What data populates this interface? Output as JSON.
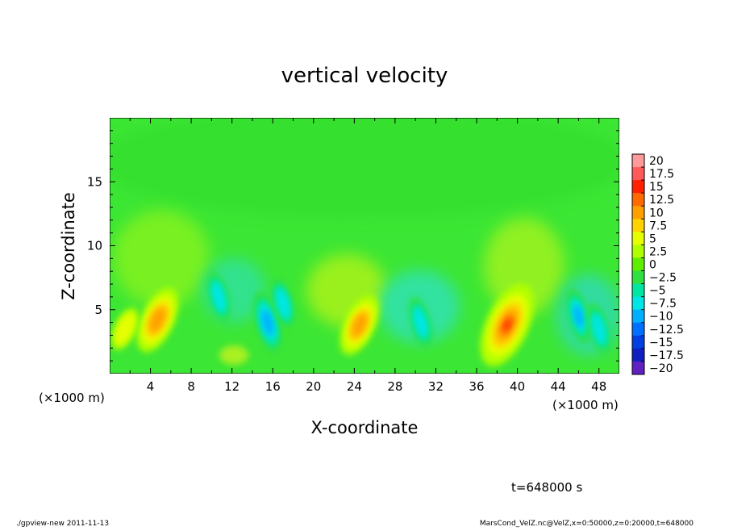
{
  "chart_data": {
    "type": "heatmap",
    "title": "vertical velocity",
    "xlabel": "X-coordinate",
    "ylabel": "Z-coordinate",
    "x_unit_label": "(×1000 m)",
    "x_unit_label_right": "(×1000 m)",
    "xlim": [
      0,
      50
    ],
    "ylim": [
      0,
      20
    ],
    "x_ticks": [
      4,
      8,
      12,
      16,
      20,
      24,
      28,
      32,
      36,
      40,
      44,
      48
    ],
    "y_ticks": [
      5,
      10,
      15
    ],
    "grid": false,
    "colorbar": {
      "labels": [
        "20",
        "17.5",
        "15",
        "12.5",
        "10",
        "7.5",
        "5",
        "2.5",
        "0",
        "−2.5",
        "−5",
        "−7.5",
        "−10",
        "−12.5",
        "−15",
        "−17.5",
        "−20"
      ],
      "values": [
        20,
        17.5,
        15,
        12.5,
        10,
        7.5,
        5,
        2.5,
        0,
        -2.5,
        -5,
        -7.5,
        -10,
        -12.5,
        -15,
        -17.5,
        -20
      ],
      "colors": [
        "#ff9a9a",
        "#ff5a5a",
        "#ff2000",
        "#ff6a00",
        "#ffa000",
        "#ffd200",
        "#e6ff00",
        "#b0ff00",
        "#60ee00",
        "#30e040",
        "#00e6a0",
        "#00e6e6",
        "#00b0ff",
        "#0070ff",
        "#0040e0",
        "#1020c0",
        "#6020c0"
      ]
    },
    "features": [
      {
        "x": 4.7,
        "z": 4.2,
        "w": 11,
        "kind": "updraft"
      },
      {
        "x": 1.5,
        "z": 3.5,
        "w": 6,
        "kind": "updraft"
      },
      {
        "x": 10.7,
        "z": 6.0,
        "w": -9,
        "kind": "downdraft"
      },
      {
        "x": 15.5,
        "z": 4.0,
        "w": -12,
        "kind": "downdraft"
      },
      {
        "x": 17.0,
        "z": 5.5,
        "w": -9,
        "kind": "downdraft"
      },
      {
        "x": 24.5,
        "z": 3.8,
        "w": 10,
        "kind": "updraft"
      },
      {
        "x": 30.5,
        "z": 4.0,
        "w": -9,
        "kind": "downdraft"
      },
      {
        "x": 39.0,
        "z": 3.8,
        "w": 15,
        "kind": "updraft"
      },
      {
        "x": 46.0,
        "z": 4.5,
        "w": -10,
        "kind": "downdraft"
      },
      {
        "x": 48.0,
        "z": 3.5,
        "w": -9,
        "kind": "downdraft"
      }
    ]
  },
  "annotations": {
    "time": "t=648000 s",
    "footer_left": "./gpview-new   2011-11-13",
    "footer_right": "MarsCond_VelZ.nc@VelZ,x=0:50000,z=0:20000,t=648000"
  }
}
